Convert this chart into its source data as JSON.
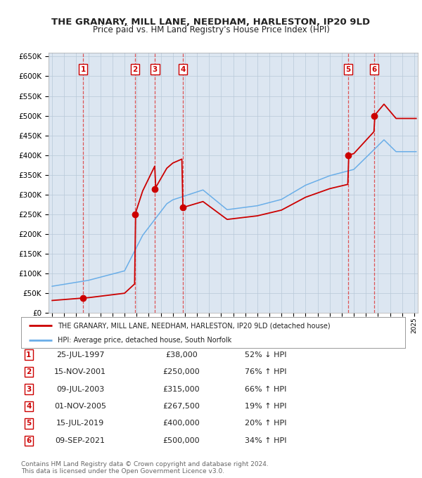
{
  "title": "THE GRANARY, MILL LANE, NEEDHAM, HARLESTON, IP20 9LD",
  "subtitle": "Price paid vs. HM Land Registry's House Price Index (HPI)",
  "legend_line1": "THE GRANARY, MILL LANE, NEEDHAM, HARLESTON, IP20 9LD (detached house)",
  "legend_line2": "HPI: Average price, detached house, South Norfolk",
  "footer_line1": "Contains HM Land Registry data © Crown copyright and database right 2024.",
  "footer_line2": "This data is licensed under the Open Government Licence v3.0.",
  "sales": [
    {
      "num": 1,
      "date_label": "25-JUL-1997",
      "price": 38000,
      "pct": "52% ↓ HPI",
      "year": 1997.56
    },
    {
      "num": 2,
      "date_label": "15-NOV-2001",
      "price": 250000,
      "pct": "76% ↑ HPI",
      "year": 2001.87
    },
    {
      "num": 3,
      "date_label": "09-JUL-2003",
      "price": 315000,
      "pct": "66% ↑ HPI",
      "year": 2003.52
    },
    {
      "num": 4,
      "date_label": "01-NOV-2005",
      "price": 267500,
      "pct": "19% ↑ HPI",
      "year": 2005.83
    },
    {
      "num": 5,
      "date_label": "15-JUL-2019",
      "price": 400000,
      "pct": "20% ↑ HPI",
      "year": 2019.54
    },
    {
      "num": 6,
      "date_label": "09-SEP-2021",
      "price": 500000,
      "pct": "34% ↑ HPI",
      "year": 2021.69
    }
  ],
  "hpi_color": "#6aaee8",
  "sale_color": "#cc0000",
  "vline_color": "#dd4444",
  "background_color": "#dce6f1",
  "plot_bg": "#ffffff",
  "grid_color": "#b8c8d8",
  "ylim": [
    0,
    660000
  ],
  "yticks": [
    0,
    50000,
    100000,
    150000,
    200000,
    250000,
    300000,
    350000,
    400000,
    450000,
    500000,
    550000,
    600000,
    650000
  ],
  "xlim_start": 1994.7,
  "xlim_end": 2025.3
}
